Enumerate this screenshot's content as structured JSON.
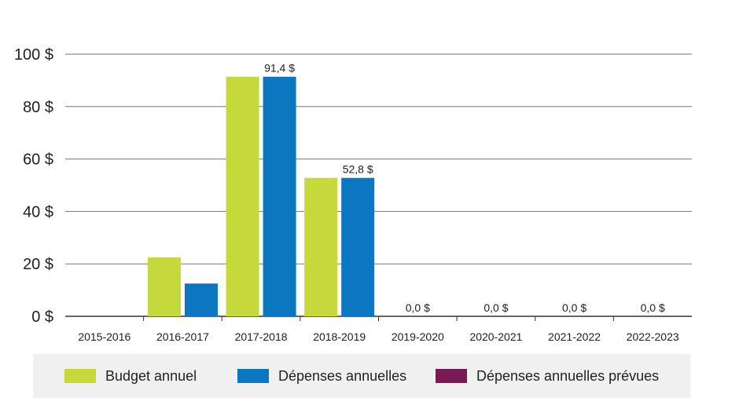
{
  "chart_data": {
    "type": "bar",
    "categories": [
      "2015-2016",
      "2016-2017",
      "2017-2018",
      "2018-2019",
      "2019-2020",
      "2020-2021",
      "2021-2022",
      "2022-2023"
    ],
    "series": [
      {
        "name": "Budget annuel",
        "color": "#c5d93c",
        "values": [
          null,
          22.5,
          91.4,
          52.8,
          null,
          null,
          null,
          null
        ]
      },
      {
        "name": "Dépenses annuelles",
        "color": "#0a77c0",
        "values": [
          null,
          12.5,
          91.4,
          52.8,
          null,
          null,
          null,
          null
        ]
      },
      {
        "name": "Dépenses annuelles prévues",
        "color": "#7a1a55",
        "values": [
          null,
          null,
          null,
          null,
          0,
          0,
          0,
          0
        ]
      }
    ],
    "data_labels": [
      "",
      "",
      "91,4 $",
      "52,8 $",
      "0,0 $",
      "0,0 $",
      "0,0 $",
      "0,0 $"
    ],
    "y_ticks": [
      0,
      20,
      40,
      60,
      80,
      100
    ],
    "y_tick_labels": [
      "0 $",
      "20 $",
      "40 $",
      "60 $",
      "80 $",
      "100 $"
    ],
    "ylim": [
      0,
      100
    ],
    "grid": true,
    "legend_position": "bottom"
  }
}
